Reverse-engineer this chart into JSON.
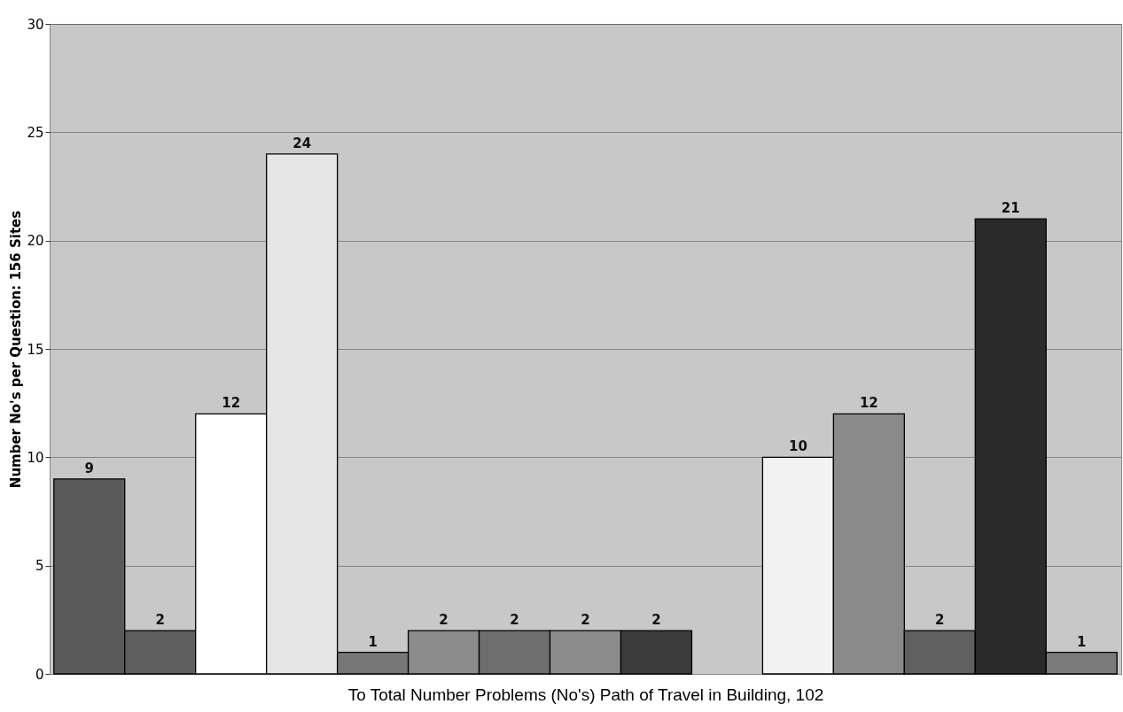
{
  "chart_data": {
    "type": "bar",
    "xlabel": "To  Total Number Problems (No's) Path of Travel in Building, 102",
    "ylabel": "Number No's per Question: 156 Sites",
    "categories": [
      null,
      null,
      null,
      null,
      null,
      null,
      null,
      null,
      null,
      null,
      null,
      null,
      null,
      null,
      null
    ],
    "values": [
      9,
      2,
      12,
      24,
      1,
      2,
      2,
      2,
      2,
      null,
      10,
      12,
      2,
      21,
      1
    ],
    "colors": [
      "#5a5a5a",
      "#5e5e5e",
      "#ffffff",
      "#e6e6e6",
      "#777777",
      "#8c8c8c",
      "#6e6e6e",
      "#8c8c8c",
      "#3c3c3c",
      "#808080",
      "#f2f2f2",
      "#8a8a8a",
      "#606060",
      "#2a2a2a",
      "#7a7a7a"
    ],
    "ylim": [
      0,
      30
    ],
    "yticks": [
      0,
      5,
      10,
      15,
      20,
      25,
      30
    ],
    "grid": "y",
    "data_labels": true,
    "tick_labels": "y",
    "legend": false
  }
}
